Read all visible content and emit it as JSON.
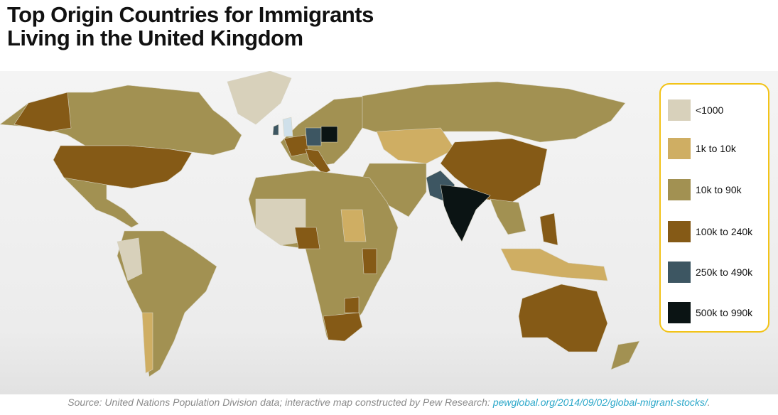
{
  "header": {
    "title_lines": [
      "Top Origin Countries for Immigrants",
      "Living in the United Kingdom"
    ]
  },
  "legend": {
    "items": [
      {
        "label": "<1000",
        "color": "#d8d1bb"
      },
      {
        "label": "1k to 10k",
        "color": "#cfae63"
      },
      {
        "label": "10k to 90k",
        "color": "#a29152"
      },
      {
        "label": "100k to 240k",
        "color": "#855a16"
      },
      {
        "label": "250k to 490k",
        "color": "#3d5662"
      },
      {
        "label": "500k to 990k",
        "color": "#0b1414"
      }
    ]
  },
  "footer": {
    "source": "Source: United Nations Population Division data; interactive map constructed by Pew Research:",
    "link": "pewglobal.org/2014/09/02/global-migrant-stocks/",
    "end": "."
  }
}
